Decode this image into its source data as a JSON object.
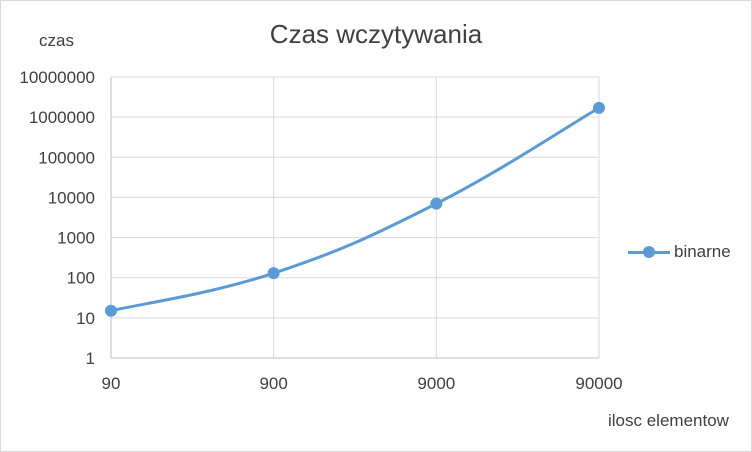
{
  "chart_data": {
    "type": "line",
    "title": "Czas wczytywania",
    "xlabel": "ilosc elementow",
    "ylabel": "czas",
    "x_scale": "log",
    "y_scale": "log",
    "xlim": [
      90,
      90000
    ],
    "ylim": [
      1,
      10000000
    ],
    "x_ticks": [
      "90",
      "900",
      "9000",
      "90000"
    ],
    "y_ticks": [
      "1",
      "10",
      "100",
      "1000",
      "10000",
      "100000",
      "1000000",
      "10000000"
    ],
    "x": [
      90,
      900,
      9000,
      90000
    ],
    "series": [
      {
        "name": "binarne",
        "color": "#5b9bd5",
        "values": [
          15,
          130,
          7000,
          1700000
        ]
      }
    ],
    "grid": true,
    "legend": "right",
    "smooth": true
  }
}
